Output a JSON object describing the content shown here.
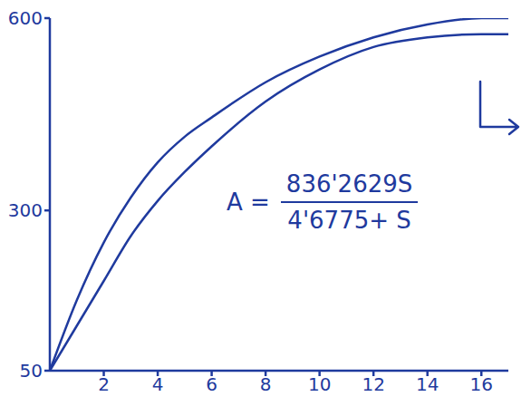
{
  "chart_data": {
    "type": "line",
    "x": [
      0,
      1,
      2,
      3,
      4,
      5,
      6,
      8,
      10,
      12,
      14,
      16,
      17
    ],
    "series": [
      {
        "color": "#1f3a9e",
        "values": [
          50,
          160,
          250,
          320,
          375,
          415,
          445,
          500,
          540,
          570,
          590,
          600,
          600
        ]
      },
      {
        "color": "#1f3a9e",
        "values": [
          50,
          120,
          190,
          260,
          315,
          360,
          400,
          470,
          520,
          555,
          570,
          575,
          575
        ]
      }
    ],
    "xlim": [
      0,
      17
    ],
    "ylim": [
      50,
      600
    ],
    "xticks": [
      2,
      4,
      6,
      8,
      10,
      12,
      14,
      16
    ],
    "yticks": [
      50,
      300,
      600
    ],
    "annotation": {
      "text": "A =",
      "numerator": "836'2629S",
      "denominator": "4'6775+ S"
    }
  }
}
